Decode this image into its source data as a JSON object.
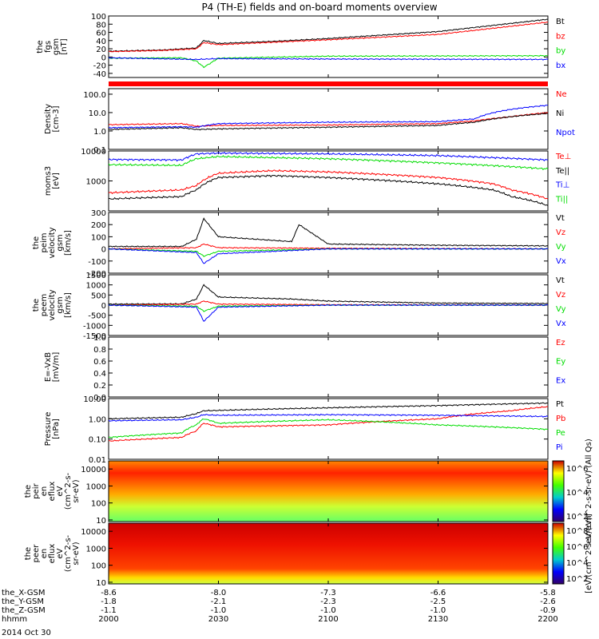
{
  "title": "P4 (TH-E) fields and on-board moments overview",
  "date_label": "2014 Oct 30",
  "colors": {
    "black": "#000000",
    "red": "#ff0000",
    "green": "#00dd00",
    "blue": "#0000ff"
  },
  "chart_data": [
    {
      "type": "line",
      "ylabel": [
        "the",
        "fgs",
        "gsm",
        "[nT]"
      ],
      "ylim": [
        -50,
        100
      ],
      "log": false,
      "yticks": [
        "100",
        "80",
        "60",
        "40",
        "20",
        "0",
        "-20",
        "-40"
      ],
      "ytick_vals": [
        100,
        80,
        60,
        40,
        20,
        0,
        -20,
        -40
      ],
      "series": [
        {
          "name": "Bt",
          "color": "#000000",
          "x": [
            0,
            15,
            24,
            26,
            30,
            45,
            60,
            90,
            120
          ],
          "y": [
            14,
            17,
            22,
            40,
            33,
            38,
            45,
            62,
            92
          ]
        },
        {
          "name": "bz",
          "color": "#ff0000",
          "x": [
            0,
            15,
            24,
            26,
            30,
            45,
            60,
            90,
            120
          ],
          "y": [
            13,
            16,
            20,
            35,
            30,
            36,
            42,
            55,
            85
          ]
        },
        {
          "name": "by",
          "color": "#00dd00",
          "x": [
            0,
            20,
            24,
            26,
            30,
            60,
            120
          ],
          "y": [
            -3,
            -2,
            -10,
            -25,
            -3,
            2,
            3
          ]
        },
        {
          "name": "bx",
          "color": "#0000ff",
          "x": [
            0,
            24,
            30,
            60,
            120
          ],
          "y": [
            -2,
            -6,
            -4,
            -5,
            -6
          ]
        }
      ]
    },
    {
      "type": "line",
      "ylabel": [
        "Density",
        "[cm-3]"
      ],
      "ylim": [
        0.1,
        200
      ],
      "log": true,
      "yticks": [
        "100.0",
        "10.0",
        "1.0",
        "0.1"
      ],
      "ytick_vals": [
        100,
        10,
        1,
        0.1
      ],
      "series": [
        {
          "name": "Ne",
          "color": "#ff0000",
          "x": [
            0,
            20,
            24,
            30,
            60,
            90,
            100,
            110,
            120
          ],
          "y": [
            2.2,
            2.5,
            1.8,
            2.0,
            2.1,
            2.5,
            3.5,
            6,
            10
          ]
        },
        {
          "name": "Ni",
          "color": "#000000",
          "x": [
            0,
            20,
            24,
            30,
            60,
            90,
            100,
            110,
            120
          ],
          "y": [
            1.2,
            1.5,
            1.2,
            1.3,
            1.6,
            2.0,
            3.0,
            6,
            9
          ]
        },
        {
          "name": "Npot",
          "color": "#0000ff",
          "x": [
            0,
            20,
            24,
            30,
            60,
            90,
            100,
            110,
            120
          ],
          "y": [
            1.5,
            1.7,
            1.6,
            2.5,
            3.0,
            3.2,
            4.5,
            15,
            25
          ]
        }
      ]
    },
    {
      "type": "line",
      "ylabel": [
        "moms3",
        "[eV]"
      ],
      "ylim": [
        100,
        10000
      ],
      "log": true,
      "yticks": [
        "10000",
        "1000"
      ],
      "ytick_vals": [
        10000,
        1000
      ],
      "series": [
        {
          "name": "Te⊥",
          "color": "#ff0000",
          "x": [
            0,
            20,
            24,
            30,
            45,
            60,
            90,
            105,
            110,
            120
          ],
          "y": [
            400,
            500,
            700,
            1800,
            2200,
            2000,
            1300,
            800,
            500,
            250
          ]
        },
        {
          "name": "Te||",
          "color": "#000000",
          "x": [
            0,
            20,
            24,
            30,
            45,
            60,
            90,
            105,
            110,
            120
          ],
          "y": [
            250,
            300,
            500,
            1300,
            1500,
            1300,
            800,
            500,
            300,
            150
          ]
        },
        {
          "name": "Ti⊥",
          "color": "#0000ff",
          "x": [
            0,
            20,
            24,
            30,
            60,
            90,
            120
          ],
          "y": [
            5200,
            5000,
            8000,
            8500,
            8000,
            7000,
            5000
          ]
        },
        {
          "name": "Ti||",
          "color": "#00dd00",
          "x": [
            0,
            20,
            24,
            30,
            60,
            90,
            120
          ],
          "y": [
            3500,
            3300,
            5500,
            6500,
            5500,
            4000,
            2500
          ]
        }
      ]
    },
    {
      "type": "line",
      "ylabel": [
        "the",
        "peim",
        "velocity",
        "gsm",
        "[km/s]"
      ],
      "ylim": [
        -200,
        300
      ],
      "log": false,
      "yticks": [
        "300",
        "200",
        "100",
        "0",
        "-100",
        "-200"
      ],
      "ytick_vals": [
        300,
        200,
        100,
        0,
        -100,
        -200
      ],
      "series": [
        {
          "name": "Vt",
          "color": "#000000",
          "x": [
            0,
            20,
            24,
            26,
            30,
            40,
            50,
            52,
            60,
            90,
            120
          ],
          "y": [
            20,
            20,
            80,
            250,
            100,
            80,
            60,
            200,
            40,
            30,
            25
          ]
        },
        {
          "name": "Vz",
          "color": "#ff0000",
          "x": [
            0,
            24,
            26,
            30,
            60,
            120
          ],
          "y": [
            0,
            10,
            40,
            10,
            5,
            0
          ]
        },
        {
          "name": "Vy",
          "color": "#00dd00",
          "x": [
            0,
            24,
            26,
            30,
            60,
            120
          ],
          "y": [
            0,
            -20,
            -60,
            -20,
            0,
            0
          ]
        },
        {
          "name": "Vx",
          "color": "#0000ff",
          "x": [
            0,
            24,
            26,
            30,
            60,
            120
          ],
          "y": [
            0,
            -30,
            -120,
            -40,
            0,
            0
          ]
        }
      ]
    },
    {
      "type": "line",
      "ylabel": [
        "the",
        "peem",
        "velocity",
        "gsm",
        "[km/s]"
      ],
      "ylim": [
        -1500,
        1500
      ],
      "log": false,
      "yticks": [
        "1500",
        "1000",
        "500",
        "0",
        "-500",
        "-1000",
        "-1500"
      ],
      "ytick_vals": [
        1500,
        1000,
        500,
        0,
        -500,
        -1000,
        -1500
      ],
      "series": [
        {
          "name": "Vt",
          "color": "#000000",
          "x": [
            0,
            20,
            24,
            26,
            30,
            40,
            50,
            60,
            90,
            120
          ],
          "y": [
            50,
            60,
            300,
            1000,
            400,
            350,
            300,
            200,
            100,
            80
          ]
        },
        {
          "name": "Vz",
          "color": "#ff0000",
          "x": [
            0,
            24,
            26,
            30,
            60,
            120
          ],
          "y": [
            0,
            50,
            200,
            50,
            20,
            0
          ]
        },
        {
          "name": "Vy",
          "color": "#00dd00",
          "x": [
            0,
            24,
            26,
            30,
            60,
            120
          ],
          "y": [
            0,
            -50,
            -300,
            -50,
            0,
            0
          ]
        },
        {
          "name": "Vx",
          "color": "#0000ff",
          "x": [
            0,
            24,
            26,
            30,
            60,
            120
          ],
          "y": [
            0,
            -100,
            -800,
            -100,
            0,
            0
          ]
        }
      ]
    },
    {
      "type": "line",
      "ylabel": [
        "E=-VxB",
        "[mV/m]"
      ],
      "ylim": [
        0,
        1
      ],
      "log": false,
      "yticks": [
        "1.0",
        "0.8",
        "0.6",
        "0.4",
        "0.2",
        "0.0"
      ],
      "ytick_vals": [
        1,
        0.8,
        0.6,
        0.4,
        0.2,
        0
      ],
      "series": [
        {
          "name": "Ez",
          "color": "#ff0000",
          "x": [],
          "y": []
        },
        {
          "name": "Ey",
          "color": "#00dd00",
          "x": [],
          "y": []
        },
        {
          "name": "Ex",
          "color": "#0000ff",
          "x": [],
          "y": []
        }
      ]
    },
    {
      "type": "line",
      "ylabel": [
        "Pressure",
        "[nPa]"
      ],
      "ylim": [
        0.01,
        10
      ],
      "log": true,
      "yticks": [
        "10.00",
        "1.00",
        "0.10",
        "0.01"
      ],
      "ytick_vals": [
        10,
        1,
        0.1,
        0.01
      ],
      "series": [
        {
          "name": "Pt",
          "color": "#000000",
          "x": [
            0,
            20,
            24,
            26,
            30,
            60,
            90,
            120
          ],
          "y": [
            1.0,
            1.2,
            1.8,
            2.5,
            2.6,
            3.5,
            4.5,
            6
          ]
        },
        {
          "name": "Pb",
          "color": "#ff0000",
          "x": [
            0,
            20,
            24,
            26,
            30,
            60,
            90,
            110,
            120
          ],
          "y": [
            0.08,
            0.12,
            0.25,
            0.6,
            0.4,
            0.5,
            1.0,
            2.5,
            4
          ]
        },
        {
          "name": "Pe",
          "color": "#00dd00",
          "x": [
            0,
            20,
            24,
            26,
            30,
            60,
            90,
            120
          ],
          "y": [
            0.12,
            0.2,
            0.5,
            1.0,
            0.6,
            0.9,
            0.5,
            0.3
          ]
        },
        {
          "name": "Pi",
          "color": "#0000ff",
          "x": [
            0,
            20,
            24,
            26,
            30,
            60,
            90,
            120
          ],
          "y": [
            0.8,
            0.9,
            1.2,
            1.6,
            1.5,
            1.6,
            1.5,
            1.3
          ]
        }
      ]
    },
    {
      "type": "heatmap",
      "ylabel": [
        "the",
        "peir",
        "en",
        "eflux",
        "eV",
        "(cm^2-s-",
        "sr-eV)"
      ],
      "ylim": [
        8,
        30000
      ],
      "log": true,
      "yticks": [
        "10000",
        "1000",
        "100",
        "10"
      ],
      "ytick_vals": [
        10000,
        1000,
        100,
        10
      ],
      "colorbar": {
        "label": "eV/(cm^2-s-sr-eV) (All Qs)",
        "ticks": [
          "10^6",
          "10^4",
          "10^2"
        ]
      }
    },
    {
      "type": "heatmap",
      "ylabel": [
        "the",
        "peer",
        "en",
        "eflux",
        "eV",
        "(cm^2-s-",
        "sr-eV)"
      ],
      "ylim": [
        8,
        30000
      ],
      "log": true,
      "yticks": [
        "10000",
        "1000",
        "100",
        "10"
      ],
      "ytick_vals": [
        10000,
        1000,
        100,
        10
      ],
      "colorbar": {
        "label": "[eV/(cm^2-s-sr-eV)]",
        "ticks": [
          "10^8",
          "10^6",
          "10^4",
          "10^2"
        ]
      }
    }
  ],
  "x_axis": {
    "row_labels": [
      "the_X-GSM",
      "the_Y-GSM",
      "the_Z-GSM",
      "hhmm"
    ],
    "columns": [
      {
        "x": 0,
        "vals": [
          "-8.6",
          "-1.8",
          "-1.1",
          "2000"
        ]
      },
      {
        "x": 30,
        "vals": [
          "-8.0",
          "-2.1",
          "-1.0",
          "2030"
        ]
      },
      {
        "x": 60,
        "vals": [
          "-7.3",
          "-2.3",
          "-1.0",
          "2100"
        ]
      },
      {
        "x": 90,
        "vals": [
          "-6.6",
          "-2.5",
          "-1.0",
          "2130"
        ]
      },
      {
        "x": 120,
        "vals": [
          "-5.8",
          "-2.6",
          "-0.9",
          "2200"
        ]
      }
    ]
  }
}
